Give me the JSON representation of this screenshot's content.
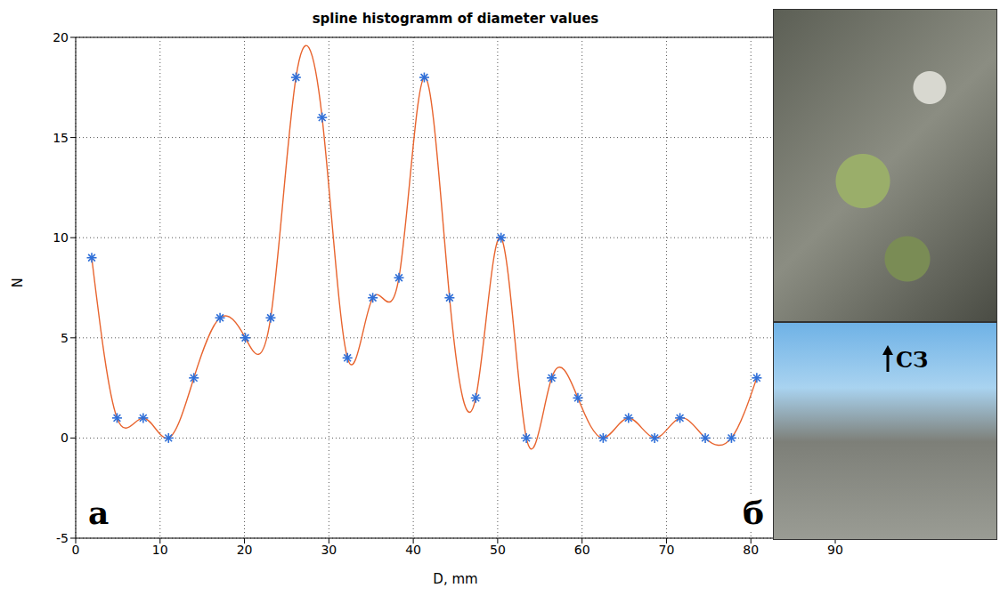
{
  "chart_data": {
    "type": "line",
    "title": "spline histogramm of diameter values",
    "x_label": "D, mm",
    "y_label": "N",
    "x": [
      1.9,
      4.9,
      8.0,
      11.0,
      14.0,
      17.1,
      20.1,
      23.1,
      26.1,
      29.2,
      32.2,
      35.2,
      38.3,
      41.3,
      44.3,
      47.4,
      50.4,
      53.4,
      56.4,
      59.5,
      62.5,
      65.5,
      68.6,
      71.6,
      74.6,
      77.7,
      80.7
    ],
    "series": [
      {
        "type": "line",
        "line_style": "spline",
        "color": "#e8642e",
        "values": [
          9,
          1,
          1,
          0,
          3,
          6,
          5,
          6,
          18,
          16,
          4,
          7,
          8,
          18,
          7,
          2,
          10,
          0,
          3,
          2,
          0,
          1,
          0,
          1,
          0,
          0,
          3
        ]
      },
      {
        "type": "scatter",
        "marker": "asterisk",
        "color": "#2f6fd8",
        "values": [
          9,
          1,
          1,
          0,
          3,
          6,
          5,
          6,
          18,
          16,
          4,
          7,
          8,
          18,
          7,
          2,
          10,
          0,
          3,
          2,
          0,
          1,
          0,
          1,
          0,
          0,
          3
        ]
      }
    ],
    "xlim": [
      0,
      90
    ],
    "xticks": [
      0,
      10,
      20,
      30,
      40,
      50,
      60,
      70,
      80,
      90
    ],
    "ylim": [
      -5,
      20
    ],
    "yticks": [
      -5,
      0,
      5,
      10,
      15,
      20
    ],
    "grid": true,
    "annotations": [
      "а",
      "б",
      "СЗ"
    ]
  }
}
